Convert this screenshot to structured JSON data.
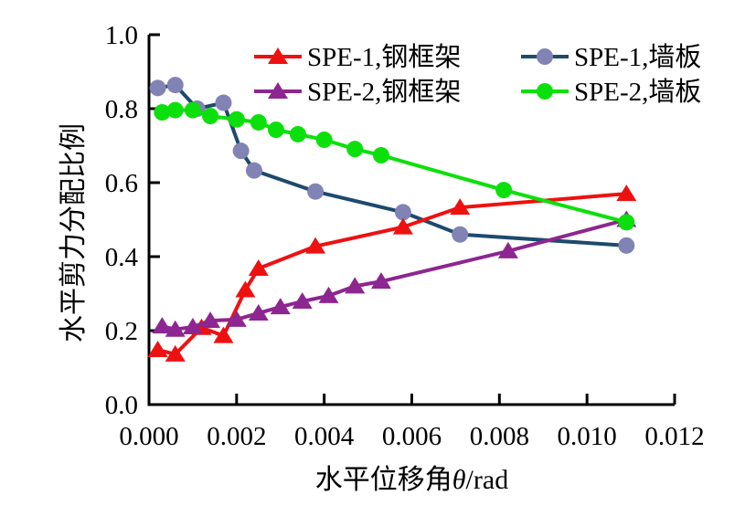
{
  "chart_data": {
    "type": "line",
    "title": "",
    "xlabel_text": "水平位移角",
    "xlabel_symbol": "θ",
    "xlabel_unit": "/rad",
    "ylabel": "水平剪力分配比例",
    "xlim": [
      0,
      0.012
    ],
    "ylim": [
      0,
      1.0
    ],
    "x_tick_labels": [
      "0.000",
      "0.002",
      "0.004",
      "0.006",
      "0.008",
      "0.010",
      "0.012"
    ],
    "y_tick_labels": [
      "0.0",
      "0.2",
      "0.4",
      "0.6",
      "0.8",
      "1.0"
    ],
    "grid": false,
    "axis_color": "#000000",
    "legend_position": "top-inside",
    "legend": {
      "columns": [
        [
          1,
          2
        ],
        [
          0,
          3
        ]
      ]
    },
    "series": [
      {
        "name": "SPE-1,墙板",
        "marker": "circle",
        "line_color": "#1d4a6d",
        "marker_color": "#8183b4",
        "x": [
          0.0002,
          0.0006,
          0.0011,
          0.0017,
          0.0021,
          0.0024,
          0.0038,
          0.0058,
          0.0071,
          0.0109
        ],
        "y": [
          0.856,
          0.864,
          0.8,
          0.816,
          0.686,
          0.633,
          0.576,
          0.52,
          0.46,
          0.43
        ]
      },
      {
        "name": "SPE-1,钢框架",
        "marker": "triangle",
        "line_color": "#ee1111",
        "marker_color": "#ee1111",
        "x": [
          0.0002,
          0.0006,
          0.0012,
          0.0017,
          0.0022,
          0.0025,
          0.0038,
          0.0058,
          0.0071,
          0.0109
        ],
        "y": [
          0.148,
          0.136,
          0.208,
          0.186,
          0.31,
          0.368,
          0.428,
          0.48,
          0.533,
          0.57
        ]
      },
      {
        "name": "SPE-2,钢框架",
        "marker": "triangle",
        "line_color": "#8d2690",
        "marker_color": "#8d2690",
        "x": [
          0.0003,
          0.0006,
          0.001,
          0.0014,
          0.002,
          0.0025,
          0.003,
          0.0035,
          0.0041,
          0.0047,
          0.0053,
          0.0082,
          0.0109
        ],
        "y": [
          0.212,
          0.203,
          0.21,
          0.227,
          0.23,
          0.247,
          0.264,
          0.279,
          0.294,
          0.32,
          0.333,
          0.415,
          0.5
        ]
      },
      {
        "name": "SPE-2,墙板",
        "marker": "circle",
        "line_color": "#0ce00c",
        "marker_color": "#0ce00c",
        "x": [
          0.0003,
          0.0006,
          0.001,
          0.0014,
          0.002,
          0.0025,
          0.0029,
          0.0034,
          0.004,
          0.0047,
          0.0053,
          0.0081,
          0.0109
        ],
        "y": [
          0.79,
          0.796,
          0.796,
          0.78,
          0.771,
          0.763,
          0.743,
          0.731,
          0.716,
          0.691,
          0.674,
          0.58,
          0.493
        ]
      }
    ]
  }
}
